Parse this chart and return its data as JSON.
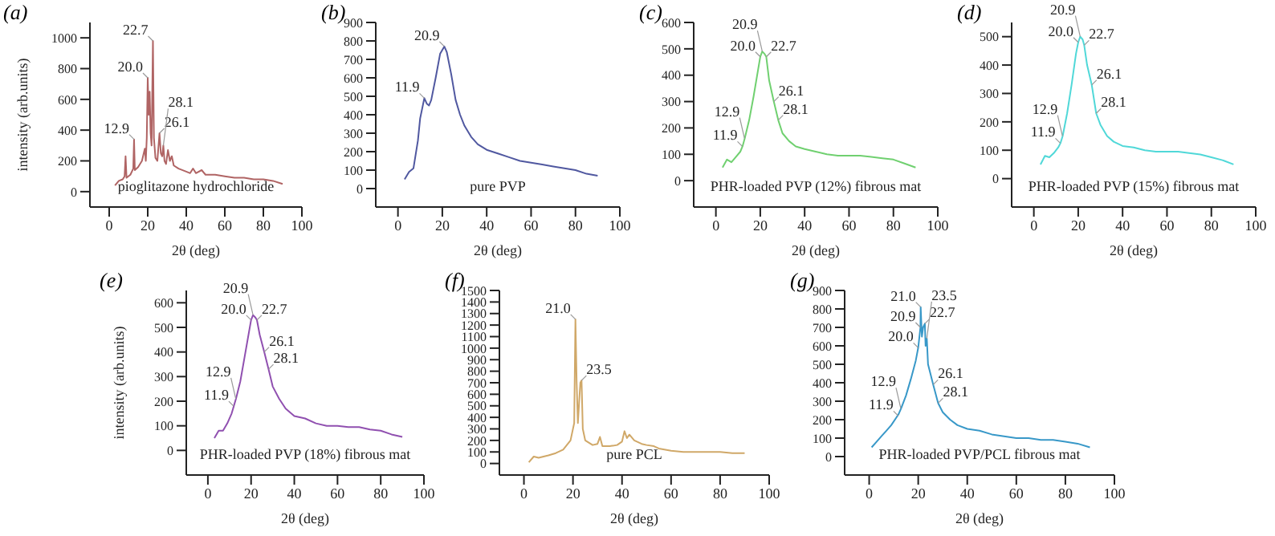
{
  "chart_data": [
    {
      "type": "line",
      "title": "(a)",
      "xlabel": "2θ (deg)",
      "ylabel": "intensity (arb.units)",
      "xlim": [
        -10,
        100
      ],
      "xticks": [
        0,
        20,
        40,
        60,
        80,
        100
      ],
      "ylim": [
        -100,
        1100
      ],
      "yticks": [
        0,
        200,
        400,
        600,
        800,
        1000
      ],
      "x": [
        3,
        5,
        7,
        8,
        8.5,
        9,
        11,
        12.5,
        12.9,
        13.3,
        15,
        17,
        18.5,
        19,
        19.5,
        20,
        20.5,
        21,
        21.5,
        22,
        22.7,
        23.2,
        24,
        25,
        26.1,
        26.8,
        27.5,
        28.1,
        28.7,
        29.5,
        30.5,
        31.5,
        32.5,
        33.5,
        36,
        40,
        42,
        43.5,
        45,
        48,
        50,
        55,
        60,
        65,
        70,
        75,
        80,
        85,
        90
      ],
      "series": [
        {
          "color": "#b06464",
          "values": [
            40,
            70,
            80,
            100,
            230,
            90,
            110,
            150,
            340,
            140,
            160,
            200,
            280,
            200,
            350,
            740,
            500,
            650,
            380,
            300,
            980,
            350,
            220,
            200,
            380,
            250,
            230,
            300,
            200,
            180,
            270,
            200,
            230,
            170,
            150,
            130,
            120,
            150,
            120,
            140,
            110,
            110,
            100,
            90,
            90,
            80,
            80,
            70,
            50
          ]
        }
      ],
      "annotations": [
        {
          "text": "12.9",
          "x": 12.9,
          "y": 340
        },
        {
          "text": "20.0",
          "x": 20,
          "y": 740
        },
        {
          "text": "22.7",
          "x": 22.7,
          "y": 980
        },
        {
          "text": "26.1",
          "x": 26.1,
          "y": 380
        },
        {
          "text": "28.1",
          "x": 28.1,
          "y": 300
        },
        "pioglitazone hydrochloride"
      ]
    },
    {
      "type": "line",
      "title": "(b)",
      "xlabel": "2θ (deg)",
      "xlim": [
        -10,
        100
      ],
      "xticks": [
        0,
        20,
        40,
        60,
        80,
        100
      ],
      "ylim": [
        -100,
        900
      ],
      "yticks": [
        0,
        100,
        200,
        300,
        400,
        500,
        600,
        700,
        800,
        900
      ],
      "x": [
        3,
        5,
        7,
        9,
        10,
        11.9,
        13,
        14,
        15,
        17,
        19,
        20.9,
        22,
        24,
        26,
        28,
        30,
        33,
        36,
        40,
        45,
        50,
        55,
        60,
        65,
        70,
        75,
        80,
        85,
        90
      ],
      "series": [
        {
          "color": "#5058a0",
          "values": [
            50,
            90,
            110,
            260,
            380,
            490,
            460,
            450,
            480,
            600,
            730,
            770,
            740,
            620,
            480,
            400,
            340,
            280,
            240,
            210,
            190,
            170,
            150,
            140,
            130,
            120,
            110,
            100,
            80,
            70
          ]
        }
      ],
      "annotations": [
        {
          "text": "11.9",
          "x": 11.9,
          "y": 490
        },
        {
          "text": "20.9",
          "x": 20.9,
          "y": 770
        },
        "pure PVP"
      ]
    },
    {
      "type": "line",
      "title": "(c)",
      "xlabel": "2θ (deg)",
      "xlim": [
        -10,
        100
      ],
      "xticks": [
        0,
        20,
        40,
        60,
        80,
        100
      ],
      "ylim": [
        -100,
        600
      ],
      "yticks": [
        0,
        100,
        200,
        300,
        400,
        500,
        600
      ],
      "x": [
        3,
        5,
        7,
        9,
        11,
        12,
        13,
        15,
        17,
        19,
        20,
        20.9,
        22,
        22.7,
        24,
        26.1,
        28.1,
        30,
        33,
        36,
        40,
        45,
        50,
        55,
        60,
        65,
        70,
        75,
        80,
        85,
        90
      ],
      "series": [
        {
          "color": "#70d070",
          "values": [
            50,
            80,
            70,
            90,
            110,
            130,
            160,
            230,
            320,
            420,
            470,
            490,
            480,
            470,
            380,
            300,
            230,
            180,
            150,
            130,
            120,
            110,
            100,
            95,
            95,
            95,
            90,
            85,
            80,
            65,
            50
          ]
        }
      ],
      "annotations": [
        {
          "text": "11.9",
          "x": 11.9,
          "y": 130
        },
        {
          "text": "12.9",
          "x": 12.9,
          "y": 160
        },
        {
          "text": "20.0",
          "x": 20,
          "y": 470
        },
        {
          "text": "20.9",
          "x": 20.9,
          "y": 490
        },
        {
          "text": "22.7",
          "x": 22.7,
          "y": 470
        },
        {
          "text": "26.1",
          "x": 26.1,
          "y": 300
        },
        {
          "text": "28.1",
          "x": 28.1,
          "y": 230
        },
        "PHR-loaded PVP (12%) fibrous mat"
      ]
    },
    {
      "type": "line",
      "title": "(d)",
      "xlabel": "2θ (deg)",
      "xlim": [
        -10,
        100
      ],
      "xticks": [
        0,
        20,
        40,
        60,
        80,
        100
      ],
      "ylim": [
        -100,
        550
      ],
      "yticks": [
        0,
        100,
        200,
        300,
        400,
        500
      ],
      "x": [
        3,
        5,
        7,
        9,
        11,
        12,
        13,
        15,
        17,
        19,
        20,
        20.9,
        22,
        22.7,
        24,
        26.1,
        28.1,
        30,
        33,
        36,
        40,
        45,
        50,
        55,
        60,
        65,
        70,
        75,
        80,
        85,
        90
      ],
      "series": [
        {
          "color": "#50d8d8",
          "values": [
            50,
            80,
            75,
            90,
            110,
            125,
            150,
            230,
            330,
            440,
            480,
            500,
            490,
            470,
            400,
            330,
            230,
            190,
            150,
            130,
            115,
            110,
            100,
            95,
            95,
            95,
            90,
            85,
            75,
            65,
            50
          ]
        }
      ],
      "annotations": [
        {
          "text": "11.9",
          "x": 11.9,
          "y": 125
        },
        {
          "text": "12.9",
          "x": 12.9,
          "y": 150
        },
        {
          "text": "20.0",
          "x": 20,
          "y": 480
        },
        {
          "text": "20.9",
          "x": 20.9,
          "y": 500
        },
        {
          "text": "22.7",
          "x": 22.7,
          "y": 470
        },
        {
          "text": "26.1",
          "x": 26.1,
          "y": 330
        },
        {
          "text": "28.1",
          "x": 28.1,
          "y": 230
        },
        "PHR-loaded PVP (15%) fibrous mat"
      ]
    },
    {
      "type": "line",
      "title": "(e)",
      "xlabel": "2θ (deg)",
      "ylabel": "intensity (arb.units)",
      "xlim": [
        -10,
        100
      ],
      "xticks": [
        0,
        20,
        40,
        60,
        80,
        100
      ],
      "ylim": [
        -100,
        650
      ],
      "yticks": [
        0,
        100,
        200,
        300,
        400,
        500,
        600
      ],
      "x": [
        3,
        5,
        7,
        9,
        11,
        12,
        13,
        15,
        17,
        19,
        20,
        20.9,
        22,
        22.7,
        24,
        26.1,
        28.1,
        30,
        33,
        36,
        40,
        45,
        50,
        55,
        60,
        65,
        70,
        75,
        80,
        85,
        90
      ],
      "series": [
        {
          "color": "#9050b0",
          "values": [
            50,
            80,
            80,
            110,
            150,
            180,
            210,
            280,
            380,
            480,
            530,
            550,
            540,
            530,
            470,
            400,
            330,
            260,
            210,
            170,
            140,
            130,
            110,
            100,
            100,
            95,
            95,
            85,
            80,
            65,
            55
          ]
        }
      ],
      "annotations": [
        {
          "text": "11.9",
          "x": 11.9,
          "y": 180
        },
        {
          "text": "12.9",
          "x": 12.9,
          "y": 210
        },
        {
          "text": "20.0",
          "x": 20,
          "y": 530
        },
        {
          "text": "20.9",
          "x": 20.9,
          "y": 550
        },
        {
          "text": "22.7",
          "x": 22.7,
          "y": 530
        },
        {
          "text": "26.1",
          "x": 26.1,
          "y": 400
        },
        {
          "text": "28.1",
          "x": 28.1,
          "y": 330
        },
        "PHR-loaded PVP (18%) fibrous mat"
      ]
    },
    {
      "type": "line",
      "title": "(f)",
      "xlabel": "2θ (deg)",
      "xlim": [
        -10,
        100
      ],
      "xticks": [
        0,
        20,
        40,
        60,
        80,
        100
      ],
      "ylim": [
        -100,
        1500
      ],
      "yticks": [
        0,
        100,
        200,
        300,
        400,
        500,
        600,
        700,
        800,
        900,
        1000,
        1100,
        1200,
        1300,
        1400,
        1500
      ],
      "x": [
        2,
        4,
        6,
        8,
        10,
        13,
        16,
        19,
        20.5,
        21,
        21.5,
        22,
        23,
        23.5,
        24,
        25,
        28,
        30,
        31,
        32,
        35,
        38,
        40,
        41,
        42,
        43,
        45,
        48,
        50,
        53,
        55,
        60,
        65,
        70,
        75,
        80,
        85,
        90
      ],
      "series": [
        {
          "color": "#d0a868",
          "values": [
            10,
            60,
            50,
            60,
            70,
            90,
            120,
            200,
            350,
            1250,
            700,
            350,
            700,
            720,
            300,
            200,
            160,
            170,
            230,
            150,
            150,
            160,
            190,
            280,
            220,
            250,
            200,
            170,
            160,
            150,
            130,
            110,
            100,
            100,
            100,
            100,
            90,
            90
          ]
        }
      ],
      "annotations": [
        {
          "text": "21.0",
          "x": 21,
          "y": 1250
        },
        {
          "text": "23.5",
          "x": 23.5,
          "y": 720
        },
        "pure PCL"
      ]
    },
    {
      "type": "line",
      "title": "(g)",
      "xlabel": "2θ (deg)",
      "xlim": [
        -10,
        100
      ],
      "xticks": [
        0,
        20,
        40,
        60,
        80,
        100
      ],
      "ylim": [
        -100,
        900
      ],
      "yticks": [
        0,
        100,
        200,
        300,
        400,
        500,
        600,
        700,
        800,
        900
      ],
      "x": [
        1,
        3,
        5,
        7,
        9,
        11,
        12,
        13,
        15,
        17,
        19,
        20,
        20.9,
        21,
        21.5,
        22,
        22.7,
        23,
        23.5,
        24,
        26.1,
        28.1,
        30,
        33,
        36,
        40,
        45,
        50,
        55,
        60,
        65,
        70,
        75,
        80,
        85,
        90
      ],
      "series": [
        {
          "color": "#3898c8",
          "values": [
            50,
            80,
            110,
            140,
            170,
            210,
            230,
            260,
            330,
            420,
            520,
            590,
            700,
            810,
            650,
            700,
            720,
            600,
            640,
            500,
            390,
            290,
            240,
            200,
            170,
            150,
            140,
            120,
            110,
            100,
            100,
            90,
            90,
            80,
            70,
            50
          ]
        }
      ],
      "annotations": [
        {
          "text": "11.9",
          "x": 11.9,
          "y": 220
        },
        {
          "text": "12.9",
          "x": 12.9,
          "y": 260
        },
        {
          "text": "20.0",
          "x": 20,
          "y": 590
        },
        {
          "text": "20.9",
          "x": 20.9,
          "y": 700
        },
        {
          "text": "21.0",
          "x": 21,
          "y": 810
        },
        {
          "text": "22.7",
          "x": 22.7,
          "y": 720
        },
        {
          "text": "23.5",
          "x": 23.5,
          "y": 640
        },
        {
          "text": "26.1",
          "x": 26.1,
          "y": 390
        },
        {
          "text": "28.1",
          "x": 28.1,
          "y": 290
        },
        "PHR-loaded PVP/PCL fibrous mat"
      ]
    }
  ]
}
